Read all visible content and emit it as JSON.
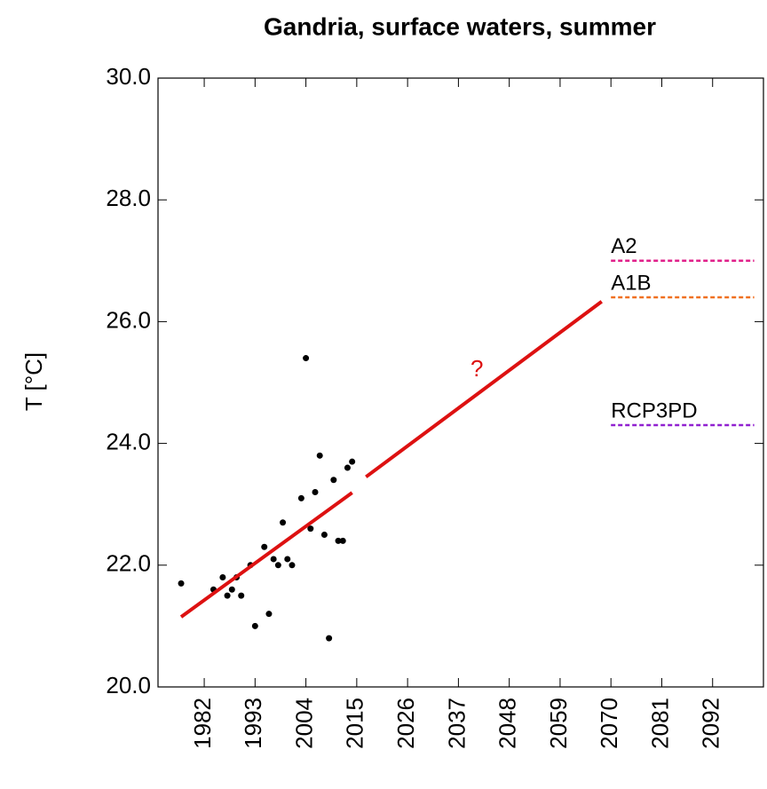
{
  "chart_data": {
    "type": "scatter",
    "title": "Gandria, surface waters, summer",
    "y_label": "T [°C]",
    "xlim": [
      1972,
      2103
    ],
    "ylim": [
      20,
      30
    ],
    "xticks": [
      1982,
      1993,
      2004,
      2015,
      2026,
      2037,
      2048,
      2059,
      2070,
      2081,
      2092
    ],
    "yticks": [
      {
        "value": 20,
        "label": "20.0"
      },
      {
        "value": 22,
        "label": "22.0"
      },
      {
        "value": 24,
        "label": "24.0"
      },
      {
        "value": 26,
        "label": "26.0"
      },
      {
        "value": 28,
        "label": "28.0"
      },
      {
        "value": 30,
        "label": "30.0"
      }
    ],
    "series": [
      {
        "type": "scatter",
        "color": "#000000",
        "x": [
          1977,
          1984,
          1986,
          1987,
          1988,
          1989,
          1990,
          1992,
          1993,
          1995,
          1996,
          1997,
          1998,
          1999,
          2000,
          2001,
          2003,
          2004,
          2005,
          2006,
          2007,
          2008,
          2009,
          2010,
          2011,
          2012,
          2013,
          2014
        ],
        "values": [
          21.7,
          21.6,
          21.8,
          21.5,
          21.6,
          21.8,
          21.5,
          22.0,
          21.0,
          22.3,
          21.2,
          22.1,
          22.0,
          22.7,
          22.1,
          22.0,
          23.1,
          25.4,
          22.6,
          23.2,
          23.8,
          22.5,
          20.8,
          23.4,
          22.4,
          22.4,
          23.6,
          23.7
        ]
      },
      {
        "type": "line",
        "color": "#dd1111",
        "x": [
          1977,
          2014
        ],
        "values": [
          21.15,
          23.19
        ]
      },
      {
        "type": "line",
        "color": "#dd1111",
        "x": [
          2017,
          2068
        ],
        "values": [
          23.45,
          26.33
        ]
      },
      {
        "type": "dashed",
        "name": "A2",
        "color": "#e0208a",
        "x": [
          2070,
          2101
        ],
        "values": [
          27.0,
          27.0
        ]
      },
      {
        "type": "dashed",
        "name": "A1B",
        "color": "#f07020",
        "x": [
          2070,
          2101
        ],
        "values": [
          26.4,
          26.4
        ]
      },
      {
        "type": "dashed",
        "name": "RCP3PD",
        "color": "#9020d0",
        "x": [
          2070,
          2101
        ],
        "values": [
          24.3,
          24.3
        ]
      }
    ],
    "annotations": [
      {
        "text": "?",
        "x": 2041,
        "y": 25.2,
        "color": "#dd1111"
      }
    ]
  }
}
